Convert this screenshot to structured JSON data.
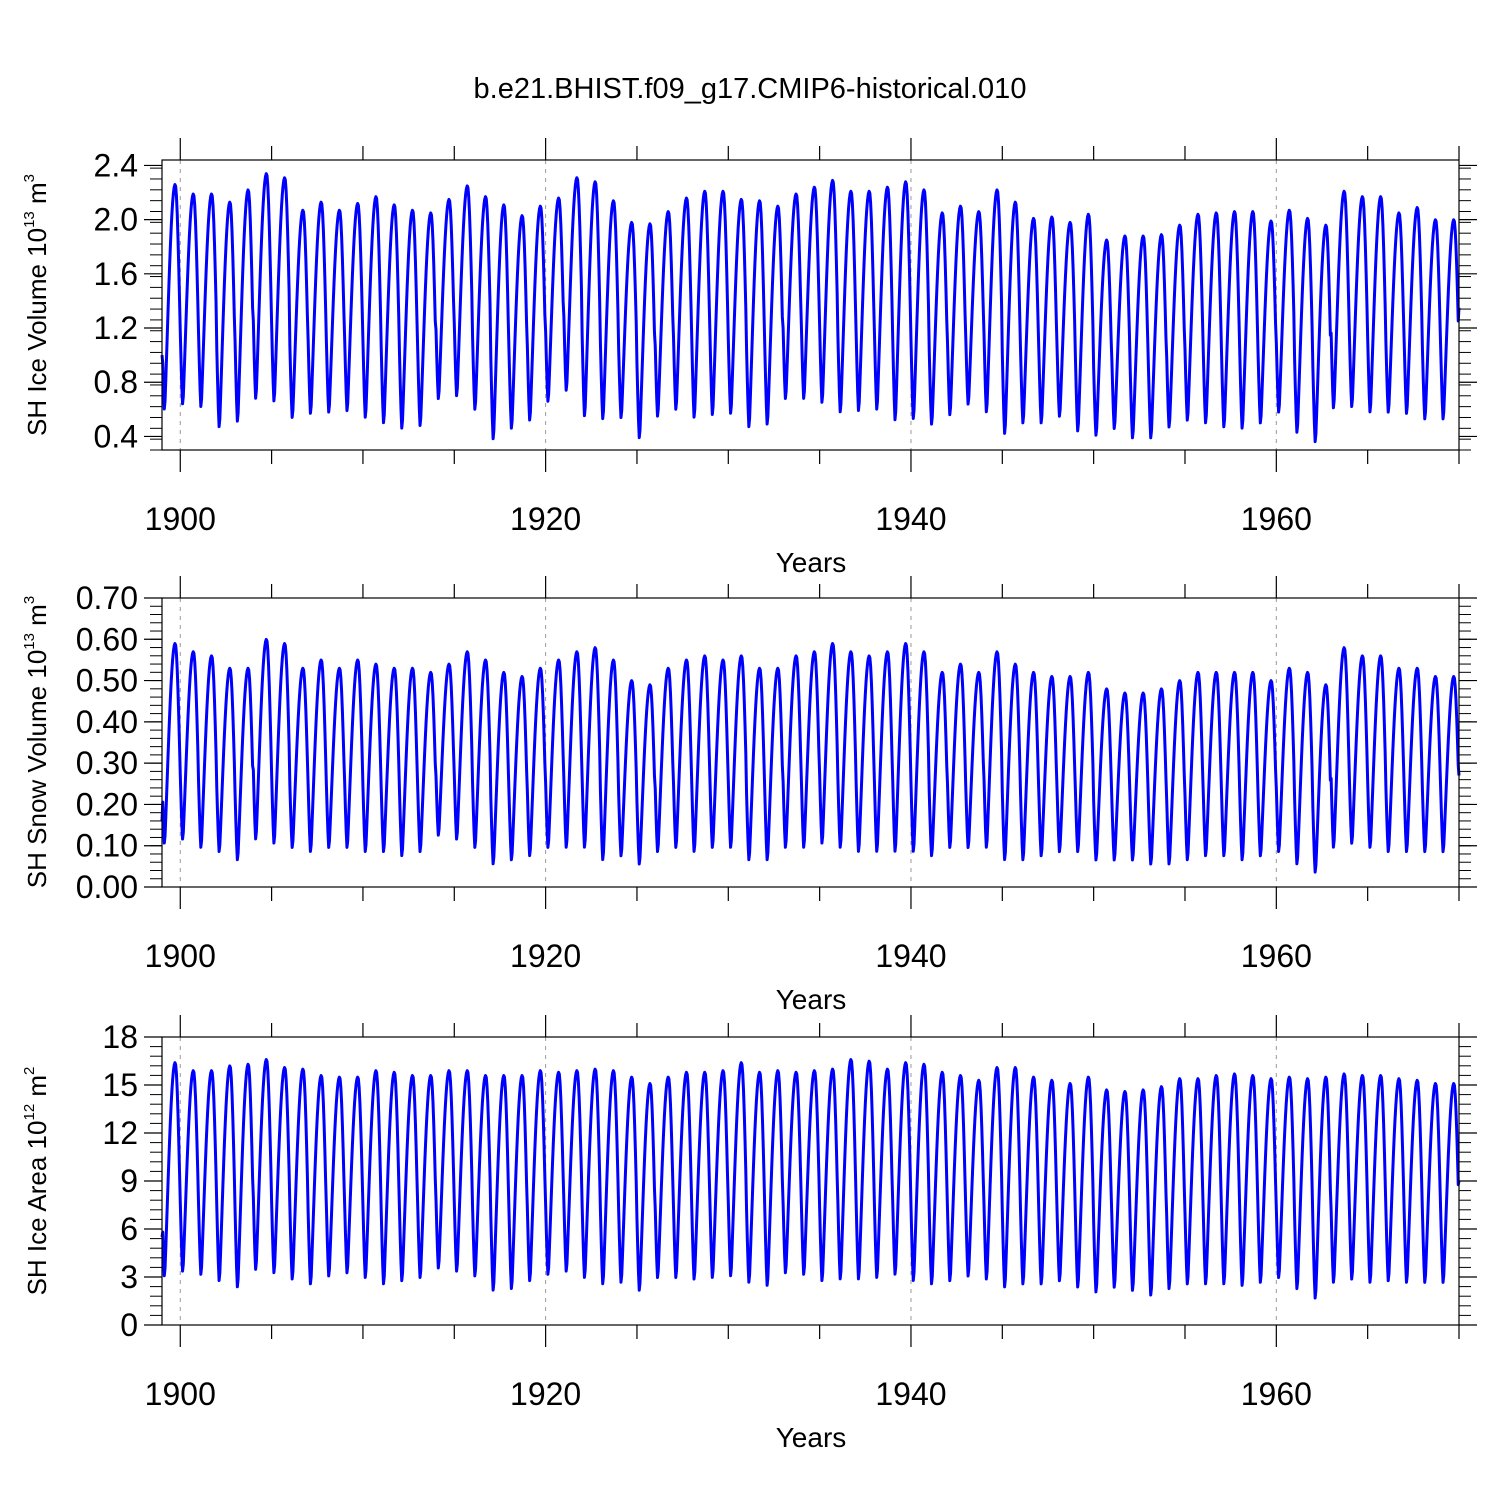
{
  "figure_title": "b.e21.BHIST.f09_g17.CMIP6-historical.010",
  "colors": {
    "line": "#0000ff",
    "axis": "#000000",
    "grid": "#999999",
    "background": "#ffffff"
  },
  "chart_data": [
    {
      "type": "line",
      "id": "ice-volume",
      "ylabel": {
        "main": "SH Ice Volume 10",
        "exp": "13",
        "unit": " m",
        "unit_exp": "3"
      },
      "xlabel": "Years",
      "xlim": [
        1899.0,
        1970.0
      ],
      "ylim": [
        0.3,
        2.44
      ],
      "yticks": [
        0.4,
        0.8,
        1.2,
        1.6,
        2.0,
        2.4
      ],
      "ytick_labels": [
        "0.4",
        "0.8",
        "1.2",
        "1.6",
        "2.0",
        "2.4"
      ],
      "xticks": [
        1900,
        1920,
        1940,
        1960
      ],
      "xtick_labels": [
        "1900",
        "1920",
        "1940",
        "1960"
      ],
      "grid": "vertical dashed at major x ticks",
      "start_value": 1.0,
      "end_value": 1.35,
      "annual_max": [
        2.26,
        2.19,
        2.19,
        2.13,
        2.22,
        2.34,
        2.31,
        2.07,
        2.13,
        2.07,
        2.12,
        2.17,
        2.11,
        2.07,
        2.05,
        2.15,
        2.25,
        2.17,
        2.11,
        2.03,
        2.1,
        2.16,
        2.31,
        2.28,
        2.14,
        1.98,
        1.97,
        2.06,
        2.16,
        2.21,
        2.21,
        2.15,
        2.14,
        2.1,
        2.19,
        2.24,
        2.29,
        2.21,
        2.21,
        2.24,
        2.28,
        2.22,
        2.05,
        2.1,
        2.06,
        2.22,
        2.13,
        2.01,
        2.02,
        1.98,
        2.04,
        1.85,
        1.88,
        1.88,
        1.89,
        1.96,
        2.04,
        2.05,
        2.06,
        2.06,
        1.99,
        2.07,
        2.01,
        1.96,
        2.21,
        2.17,
        2.17,
        2.05,
        2.09,
        2.0
      ],
      "annual_min": [
        0.58,
        0.62,
        0.6,
        0.45,
        0.49,
        0.66,
        0.64,
        0.52,
        0.55,
        0.56,
        0.57,
        0.52,
        0.48,
        0.44,
        0.46,
        0.66,
        0.68,
        0.58,
        0.36,
        0.44,
        0.5,
        0.64,
        0.72,
        0.53,
        0.51,
        0.52,
        0.37,
        0.53,
        0.58,
        0.52,
        0.54,
        0.55,
        0.45,
        0.47,
        0.66,
        0.66,
        0.63,
        0.56,
        0.57,
        0.58,
        0.5,
        0.51,
        0.47,
        0.54,
        0.62,
        0.56,
        0.4,
        0.48,
        0.48,
        0.53,
        0.42,
        0.39,
        0.44,
        0.37,
        0.37,
        0.45,
        0.5,
        0.48,
        0.45,
        0.44,
        0.48,
        0.56,
        0.41,
        0.34,
        0.59,
        0.6,
        0.56,
        0.56,
        0.55,
        0.51
      ]
    },
    {
      "type": "line",
      "id": "snow-volume",
      "ylabel": {
        "main": "SH Snow Volume 10",
        "exp": "13",
        "unit": " m",
        "unit_exp": "3"
      },
      "xlabel": "Years",
      "xlim": [
        1899.0,
        1970.0
      ],
      "ylim": [
        0.0,
        0.7
      ],
      "yticks": [
        0.0,
        0.1,
        0.2,
        0.3,
        0.4,
        0.5,
        0.6,
        0.7
      ],
      "ytick_labels": [
        "0.00",
        "0.10",
        "0.20",
        "0.30",
        "0.40",
        "0.50",
        "0.60",
        "0.70"
      ],
      "xticks": [
        1900,
        1920,
        1940,
        1960
      ],
      "xtick_labels": [
        "1900",
        "1920",
        "1940",
        "1960"
      ],
      "grid": "vertical dashed at major x ticks",
      "start_value": 0.16,
      "end_value": 0.27,
      "annual_max": [
        0.59,
        0.57,
        0.56,
        0.53,
        0.53,
        0.6,
        0.59,
        0.53,
        0.55,
        0.53,
        0.55,
        0.54,
        0.53,
        0.53,
        0.52,
        0.54,
        0.57,
        0.55,
        0.52,
        0.51,
        0.53,
        0.55,
        0.57,
        0.58,
        0.55,
        0.5,
        0.49,
        0.53,
        0.55,
        0.56,
        0.55,
        0.56,
        0.53,
        0.53,
        0.56,
        0.57,
        0.59,
        0.57,
        0.56,
        0.57,
        0.59,
        0.57,
        0.52,
        0.54,
        0.52,
        0.57,
        0.54,
        0.52,
        0.51,
        0.51,
        0.52,
        0.48,
        0.47,
        0.47,
        0.48,
        0.5,
        0.52,
        0.52,
        0.52,
        0.52,
        0.5,
        0.53,
        0.52,
        0.49,
        0.58,
        0.56,
        0.56,
        0.53,
        0.53,
        0.51
      ],
      "annual_min": [
        0.1,
        0.11,
        0.09,
        0.08,
        0.06,
        0.11,
        0.1,
        0.09,
        0.08,
        0.09,
        0.09,
        0.08,
        0.08,
        0.07,
        0.08,
        0.12,
        0.11,
        0.09,
        0.05,
        0.06,
        0.07,
        0.09,
        0.09,
        0.09,
        0.06,
        0.07,
        0.05,
        0.08,
        0.09,
        0.08,
        0.09,
        0.09,
        0.06,
        0.06,
        0.09,
        0.09,
        0.1,
        0.09,
        0.08,
        0.08,
        0.08,
        0.08,
        0.07,
        0.09,
        0.09,
        0.09,
        0.06,
        0.06,
        0.07,
        0.08,
        0.08,
        0.06,
        0.06,
        0.06,
        0.05,
        0.05,
        0.06,
        0.07,
        0.07,
        0.06,
        0.07,
        0.08,
        0.05,
        0.03,
        0.09,
        0.1,
        0.09,
        0.08,
        0.08,
        0.08
      ]
    },
    {
      "type": "line",
      "id": "ice-area",
      "ylabel": {
        "main": "SH Ice Area 10",
        "exp": "12",
        "unit": " m",
        "unit_exp": "2"
      },
      "xlabel": "Years",
      "xlim": [
        1899.0,
        1970.0
      ],
      "ylim": [
        0,
        18
      ],
      "yticks": [
        0,
        3,
        6,
        9,
        12,
        15,
        18
      ],
      "ytick_labels": [
        "0",
        "3",
        "6",
        "9",
        "12",
        "15",
        "18"
      ],
      "xticks": [
        1900,
        1920,
        1940,
        1960
      ],
      "xtick_labels": [
        "1900",
        "1920",
        "1940",
        "1960"
      ],
      "grid": "vertical dashed at major x ticks",
      "start_value": 5.5,
      "end_value": 9.0,
      "annual_max": [
        16.4,
        15.9,
        15.9,
        16.2,
        16.3,
        16.6,
        16.1,
        16.0,
        15.6,
        15.5,
        15.5,
        15.9,
        15.8,
        15.6,
        15.6,
        15.9,
        15.9,
        15.6,
        15.6,
        15.6,
        15.9,
        15.8,
        15.9,
        16.0,
        15.9,
        15.5,
        15.1,
        15.5,
        15.8,
        15.8,
        15.9,
        16.4,
        15.8,
        15.9,
        15.8,
        15.9,
        16.0,
        16.6,
        16.5,
        16.0,
        16.4,
        16.3,
        15.8,
        15.6,
        15.3,
        16.1,
        16.1,
        15.5,
        15.3,
        15.1,
        15.5,
        14.7,
        14.6,
        14.7,
        14.9,
        15.4,
        15.4,
        15.6,
        15.7,
        15.6,
        15.4,
        15.5,
        15.4,
        15.5,
        15.7,
        15.6,
        15.6,
        15.4,
        15.3,
        15.1
      ]
    },
    {
      "annual_min_note": "ice-area annual minima",
      "ice_area_annual_min": [
        2.9,
        3.2,
        3.0,
        2.6,
        2.2,
        3.3,
        3.1,
        2.7,
        2.4,
        2.9,
        3.1,
        2.8,
        2.4,
        2.6,
        2.8,
        3.4,
        3.2,
        2.9,
        2.0,
        2.1,
        2.6,
        3.0,
        3.2,
        2.8,
        2.4,
        2.5,
        2.0,
        2.8,
        2.8,
        2.7,
        2.8,
        2.9,
        2.5,
        2.3,
        3.1,
        3.0,
        2.6,
        2.7,
        2.7,
        2.8,
        3.0,
        2.6,
        2.4,
        2.6,
        2.9,
        2.7,
        2.2,
        2.4,
        2.4,
        2.6,
        2.2,
        1.9,
        2.2,
        2.0,
        1.7,
        2.1,
        2.4,
        2.4,
        2.4,
        2.3,
        2.5,
        2.8,
        2.1,
        1.5,
        2.5,
        2.7,
        2.5,
        2.6,
        2.5,
        2.5
      ]
    }
  ]
}
